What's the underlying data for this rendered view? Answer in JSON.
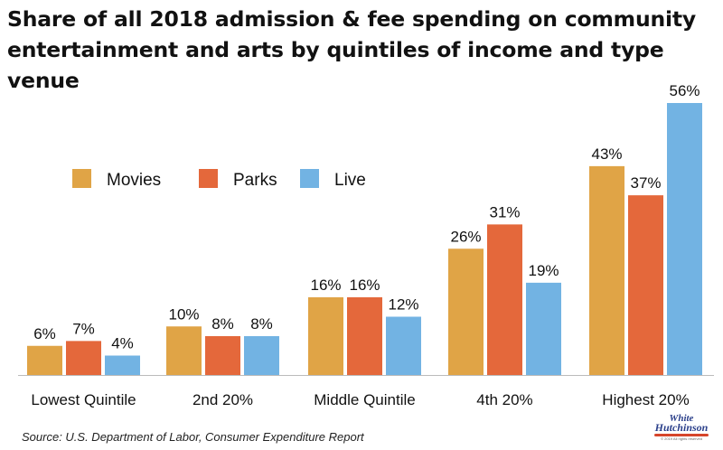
{
  "title_line1": "Share of all 2018 admission & fee spending on community",
  "title_line2": "entertainment and arts by quintiles of income and type venue",
  "source": "Source: U.S. Department of Labor, Consumer Expenditure Report",
  "logo": {
    "line1": "White",
    "line2": "Hutchinson",
    "tagline": "© 2019 All rights reserved"
  },
  "colors": {
    "Movies": "#e0a446",
    "Parks": "#e4683b",
    "Live": "#72b3e3"
  },
  "chart_data": {
    "type": "bar",
    "categories": [
      "Lowest Quintile",
      "2nd 20%",
      "Middle Quintile",
      "4th 20%",
      "Highest 20%"
    ],
    "series": [
      {
        "name": "Movies",
        "values": [
          6,
          10,
          16,
          26,
          43
        ],
        "labels": [
          "6%",
          "10%",
          "16%",
          "26%",
          "43%"
        ]
      },
      {
        "name": "Parks",
        "values": [
          7,
          8,
          16,
          31,
          37
        ],
        "labels": [
          "7%",
          "8%",
          "16%",
          "31%",
          "37%"
        ]
      },
      {
        "name": "Live",
        "values": [
          4,
          8,
          12,
          19,
          56
        ],
        "labels": [
          "4%",
          "8%",
          "12%",
          "19%",
          "56%"
        ]
      }
    ],
    "xlabel": "",
    "ylabel": "",
    "ylim": [
      0,
      56
    ],
    "grid": false,
    "legend": "upper-left"
  }
}
